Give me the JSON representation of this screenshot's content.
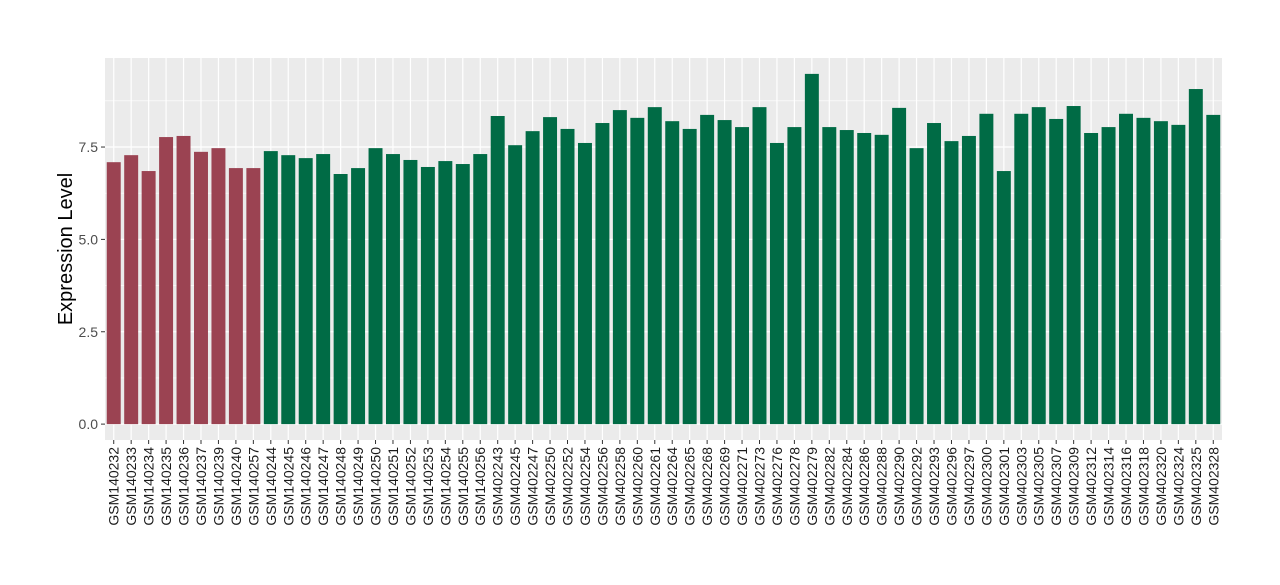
{
  "chart_data": {
    "type": "bar",
    "title": "",
    "xlabel": "",
    "ylabel": "Expression Level",
    "ylim": [
      -0.43,
      9.91
    ],
    "yticks": [
      "0.0",
      "2.5",
      "5.0",
      "7.5"
    ],
    "grid": true,
    "legend": "none",
    "colors": {
      "group1": "#9B4352",
      "group2": "#006B45",
      "panel": "#EBEBEB",
      "grid": "#FFFFFF"
    },
    "categories": [
      "GSM140232",
      "GSM140233",
      "GSM140234",
      "GSM140235",
      "GSM140236",
      "GSM140237",
      "GSM140239",
      "GSM140240",
      "GSM140257",
      "GSM140244",
      "GSM140245",
      "GSM140246",
      "GSM140247",
      "GSM140248",
      "GSM140249",
      "GSM140250",
      "GSM140251",
      "GSM140252",
      "GSM140253",
      "GSM140254",
      "GSM140255",
      "GSM140256",
      "GSM402243",
      "GSM402245",
      "GSM402247",
      "GSM402250",
      "GSM402252",
      "GSM402254",
      "GSM402256",
      "GSM402258",
      "GSM402260",
      "GSM402261",
      "GSM402264",
      "GSM402265",
      "GSM402268",
      "GSM402269",
      "GSM402271",
      "GSM402273",
      "GSM402276",
      "GSM402278",
      "GSM402279",
      "GSM402282",
      "GSM402284",
      "GSM402286",
      "GSM402288",
      "GSM402290",
      "GSM402292",
      "GSM402293",
      "GSM402296",
      "GSM402297",
      "GSM402300",
      "GSM402301",
      "GSM402303",
      "GSM402305",
      "GSM402307",
      "GSM402309",
      "GSM402312",
      "GSM402314",
      "GSM402316",
      "GSM402318",
      "GSM402320",
      "GSM402324",
      "GSM402325",
      "GSM402328"
    ],
    "values": [
      7.09,
      7.28,
      6.85,
      7.77,
      7.8,
      7.37,
      7.47,
      6.93,
      6.93,
      7.39,
      7.28,
      7.2,
      7.31,
      6.77,
      6.93,
      7.47,
      7.31,
      7.15,
      6.96,
      7.12,
      7.04,
      7.31,
      8.34,
      7.55,
      7.93,
      8.31,
      7.99,
      7.61,
      8.15,
      8.5,
      8.29,
      8.58,
      8.2,
      7.99,
      8.37,
      8.23,
      8.04,
      8.58,
      7.61,
      8.04,
      9.48,
      8.04,
      7.96,
      7.88,
      7.83,
      8.56,
      7.47,
      8.15,
      7.66,
      7.8,
      8.4,
      6.85,
      8.4,
      8.58,
      8.26,
      8.61,
      7.88,
      8.04,
      8.4,
      8.29,
      8.2,
      8.1,
      9.07,
      8.37
    ],
    "groups": [
      "group1",
      "group1",
      "group1",
      "group1",
      "group1",
      "group1",
      "group1",
      "group1",
      "group1",
      "group2",
      "group2",
      "group2",
      "group2",
      "group2",
      "group2",
      "group2",
      "group2",
      "group2",
      "group2",
      "group2",
      "group2",
      "group2",
      "group2",
      "group2",
      "group2",
      "group2",
      "group2",
      "group2",
      "group2",
      "group2",
      "group2",
      "group2",
      "group2",
      "group2",
      "group2",
      "group2",
      "group2",
      "group2",
      "group2",
      "group2",
      "group2",
      "group2",
      "group2",
      "group2",
      "group2",
      "group2",
      "group2",
      "group2",
      "group2",
      "group2",
      "group2",
      "group2",
      "group2",
      "group2",
      "group2",
      "group2",
      "group2",
      "group2",
      "group2",
      "group2",
      "group2",
      "group2",
      "group2",
      "group2"
    ]
  }
}
